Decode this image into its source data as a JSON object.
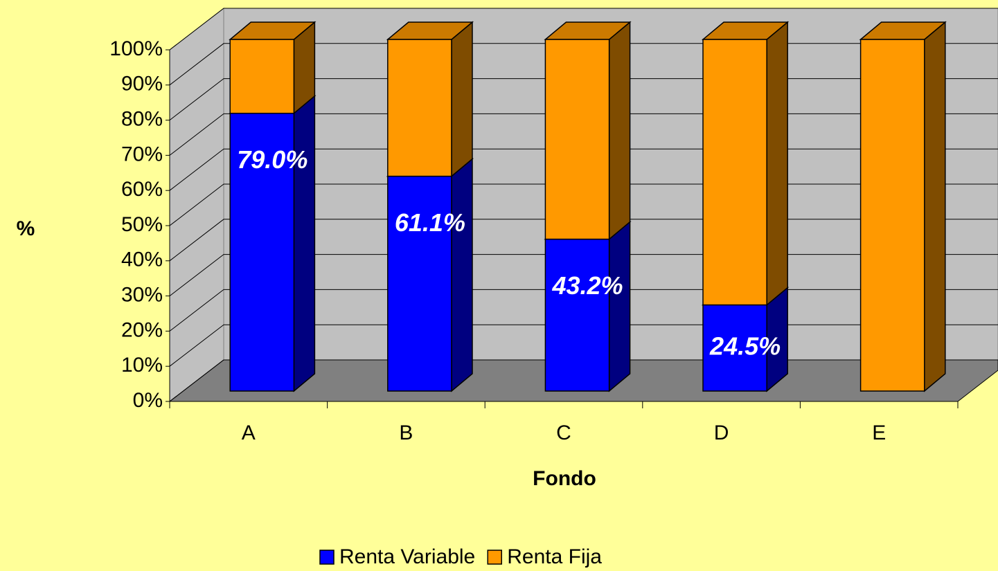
{
  "chart_data": {
    "type": "bar",
    "stacked": true,
    "categories": [
      "A",
      "B",
      "C",
      "D",
      "E"
    ],
    "series": [
      {
        "name": "Renta Variable",
        "color": "#0000ff",
        "side_color": "#000080",
        "values": [
          79.0,
          61.1,
          43.2,
          24.5,
          0
        ],
        "value_labels": [
          "79.0%",
          "61.1%",
          "43.2%",
          "24.5%",
          null
        ]
      },
      {
        "name": "Renta Fija",
        "color": "#ff9900",
        "side_color": "#7f4c00",
        "values": [
          21.0,
          38.9,
          56.8,
          75.5,
          100
        ]
      }
    ],
    "ylim": [
      0,
      100
    ],
    "yticks": [
      {
        "value": 0,
        "label": "0%"
      },
      {
        "value": 10,
        "label": "10%"
      },
      {
        "value": 20,
        "label": "20%"
      },
      {
        "value": 30,
        "label": "30%"
      },
      {
        "value": 40,
        "label": "40%"
      },
      {
        "value": 50,
        "label": "50%"
      },
      {
        "value": 60,
        "label": "60%"
      },
      {
        "value": 70,
        "label": "70%"
      },
      {
        "value": 80,
        "label": "80%"
      },
      {
        "value": 90,
        "label": "90%"
      },
      {
        "value": 100,
        "label": "100%"
      }
    ],
    "y_label": "%",
    "x_label": "Fondo",
    "grid": true,
    "legend": "bottom"
  }
}
